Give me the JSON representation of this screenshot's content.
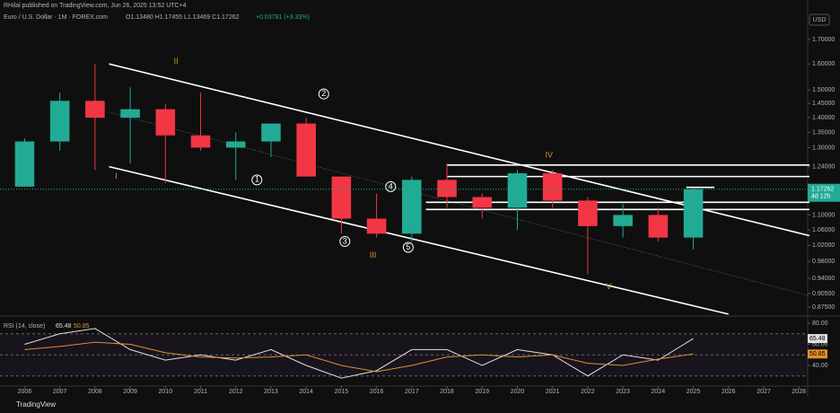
{
  "header": {
    "publisher": "RHilal published on TradingView.com, Jun 26, 2025 13:52 UTC+4",
    "symbol": "Euro / U.S. Dollar · 1M · FOREX.com",
    "ohlc": "O1.13480 H1.17455 L1.13469 C1.17262",
    "change": "+0.03781 (+3.33%)",
    "currency": "USD",
    "countdown": "4d 12h",
    "brand": "TradingView"
  },
  "chart_data": [
    {
      "type": "candlestick",
      "log_scale": true,
      "up_color": "#22ab94",
      "down_color": "#f23645",
      "x": [
        2006,
        2007,
        2008,
        2009,
        2010,
        2011,
        2012,
        2013,
        2014,
        2015,
        2016,
        2017,
        2018,
        2019,
        2020,
        2021,
        2022,
        2023,
        2024,
        2025
      ],
      "open": [
        1.18,
        1.32,
        1.46,
        1.4,
        1.43,
        1.34,
        1.3,
        1.32,
        1.38,
        1.21,
        1.09,
        1.05,
        1.2,
        1.15,
        1.12,
        1.22,
        1.14,
        1.07,
        1.1,
        1.04
      ],
      "high": [
        1.33,
        1.49,
        1.6,
        1.51,
        1.45,
        1.49,
        1.35,
        1.38,
        1.4,
        1.21,
        1.16,
        1.21,
        1.25,
        1.16,
        1.23,
        1.23,
        1.15,
        1.13,
        1.12,
        1.17455
      ],
      "low": [
        1.18,
        1.29,
        1.23,
        1.25,
        1.19,
        1.29,
        1.2,
        1.27,
        1.21,
        1.05,
        1.04,
        1.03,
        1.12,
        1.09,
        1.06,
        1.12,
        0.95,
        1.04,
        1.03,
        1.01
      ],
      "close": [
        1.32,
        1.46,
        1.4,
        1.43,
        1.34,
        1.3,
        1.32,
        1.38,
        1.21,
        1.09,
        1.05,
        1.2,
        1.15,
        1.12,
        1.22,
        1.14,
        1.07,
        1.1,
        1.04,
        1.17262
      ],
      "xlim": [
        2005.3,
        2028.25
      ],
      "ylim": [
        0.856,
        1.875
      ],
      "xticks": [
        2006,
        2007,
        2008,
        2009,
        2010,
        2011,
        2012,
        2013,
        2014,
        2015,
        2016,
        2017,
        2018,
        2019,
        2020,
        2021,
        2022,
        2023,
        2024,
        2025,
        2026,
        2027,
        2028
      ],
      "yticks": [
        {
          "value": 0.875,
          "label": "0.87500"
        },
        {
          "value": 0.905,
          "label": "0.90500"
        },
        {
          "value": 0.94,
          "label": "0.94000"
        },
        {
          "value": 0.98,
          "label": "0.98000"
        },
        {
          "value": 1.02,
          "label": "1.02000"
        },
        {
          "value": 1.06,
          "label": "1.06000"
        },
        {
          "value": 1.1,
          "label": "1.10000"
        },
        {
          "value": 1.24,
          "label": "1.24000"
        },
        {
          "value": 1.3,
          "label": "1.30000"
        },
        {
          "value": 1.35,
          "label": "1.35000"
        },
        {
          "value": 1.4,
          "label": "1.40000"
        },
        {
          "value": 1.45,
          "label": "1.45000"
        },
        {
          "value": 1.5,
          "label": "1.50000"
        },
        {
          "value": 1.6,
          "label": "1.60000"
        },
        {
          "value": 1.7,
          "label": "1.70000"
        }
      ],
      "trend_lines": [
        {
          "x": [
            2008.4,
            2028.3
          ],
          "y": [
            1.6,
            1.045
          ],
          "style": "solid"
        },
        {
          "x": [
            2008.4,
            2026.0
          ],
          "y": [
            1.24,
            0.86
          ],
          "style": "solid"
        },
        {
          "x": [
            2008.4,
            2028.3
          ],
          "y": [
            1.42,
            0.9
          ],
          "style": "dotted"
        },
        {
          "x": [
            2018.0,
            2028.3
          ],
          "y": [
            1.245,
            1.245
          ],
          "style": "solid"
        },
        {
          "x": [
            2018.0,
            2028.3
          ],
          "y": [
            1.21,
            1.21
          ],
          "style": "solid"
        },
        {
          "x": [
            2017.4,
            2028.3
          ],
          "y": [
            1.135,
            1.135
          ],
          "style": "solid"
        },
        {
          "x": [
            2017.4,
            2028.3
          ],
          "y": [
            1.115,
            1.115
          ],
          "style": "solid"
        },
        {
          "x": [
            2024.8,
            2025.6
          ],
          "y": [
            1.178,
            1.178
          ],
          "style": "solid"
        }
      ],
      "annotations": [
        {
          "text": "I",
          "x": 2008.6,
          "y": 1.21,
          "kind": "wave"
        },
        {
          "text": "II",
          "x": 2010.3,
          "y": 1.61,
          "kind": "wave"
        },
        {
          "text": "III",
          "x": 2015.9,
          "y": 0.995,
          "kind": "wave"
        },
        {
          "text": "IV",
          "x": 2020.9,
          "y": 1.275,
          "kind": "wave"
        },
        {
          "text": "V",
          "x": 2022.6,
          "y": 0.92,
          "kind": "wave"
        },
        {
          "text": "1",
          "x": 2012.6,
          "y": 1.2,
          "kind": "circle"
        },
        {
          "text": "2",
          "x": 2014.5,
          "y": 1.485,
          "kind": "circle"
        },
        {
          "text": "3",
          "x": 2015.1,
          "y": 1.03,
          "kind": "circle"
        },
        {
          "text": "4",
          "x": 2016.4,
          "y": 1.18,
          "kind": "circle"
        },
        {
          "text": "5",
          "x": 2016.9,
          "y": 1.015,
          "kind": "circle"
        }
      ]
    },
    {
      "type": "line",
      "title": "RSI (14, close)",
      "xlim": [
        2005.3,
        2028.25
      ],
      "ylim": [
        20.4,
        84.3
      ],
      "yticks": [
        {
          "value": 40,
          "label": "40.00"
        },
        {
          "value": 60,
          "label": "60.00"
        },
        {
          "value": 80,
          "label": "80.00"
        }
      ],
      "bands": [
        30,
        50,
        70
      ],
      "x": [
        2006,
        2007,
        2008,
        2009,
        2010,
        2011,
        2012,
        2013,
        2014,
        2015,
        2016,
        2017,
        2018,
        2019,
        2020,
        2021,
        2022,
        2023,
        2024,
        2025
      ],
      "series": [
        {
          "name": "RSI",
          "color": "#e0e0e0",
          "values": [
            60,
            70,
            75,
            55,
            45,
            50,
            45,
            55,
            40,
            28,
            35,
            55,
            55,
            40,
            55,
            50,
            30,
            50,
            45,
            65.48
          ]
        },
        {
          "name": "MA",
          "color": "#e0902a",
          "values": [
            55,
            58,
            62,
            60,
            52,
            48,
            47,
            48,
            50,
            40,
            34,
            40,
            48,
            50,
            48,
            50,
            42,
            40,
            46,
            50.85
          ]
        }
      ]
    }
  ]
}
